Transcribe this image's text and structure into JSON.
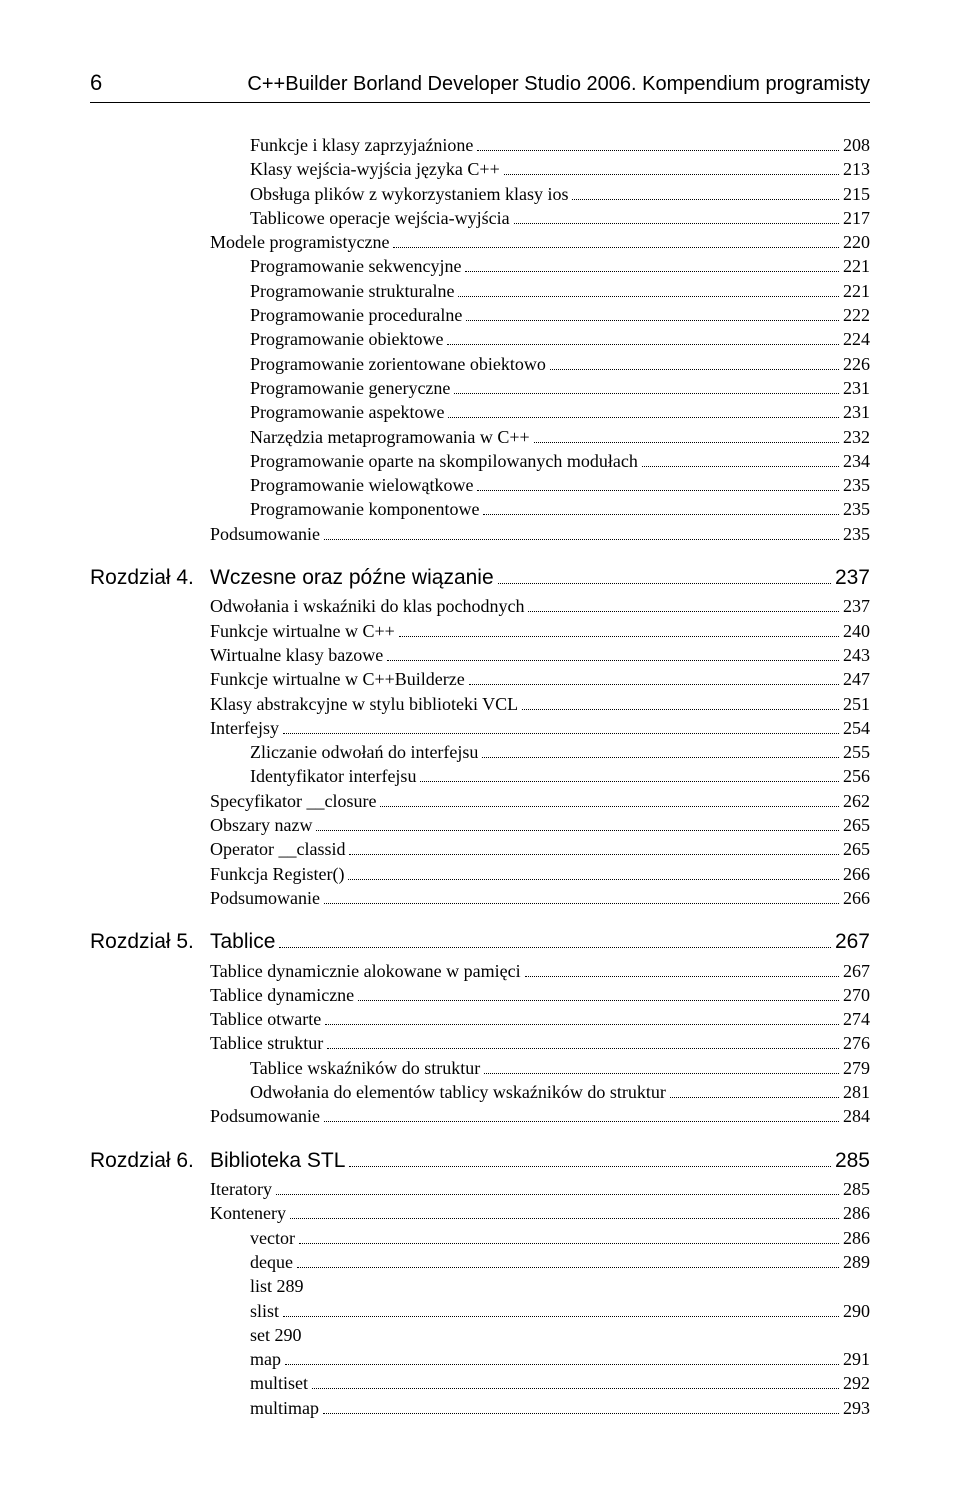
{
  "header": {
    "page_number": "6",
    "title": "C++Builder Borland Developer Studio 2006. Kompendium programisty"
  },
  "blocks": [
    {
      "type": "plain",
      "entries": [
        {
          "indent": 1,
          "label": "Funkcje i klasy zaprzyjaźnione",
          "page": "208"
        },
        {
          "indent": 1,
          "label": "Klasy wejścia-wyjścia języka C++",
          "page": "213"
        },
        {
          "indent": 1,
          "label": "Obsługa plików z wykorzystaniem klasy ios",
          "page": "215"
        },
        {
          "indent": 1,
          "label": "Tablicowe operacje wejścia-wyjścia",
          "page": "217"
        },
        {
          "indent": 0,
          "label": "Modele programistyczne",
          "page": "220"
        },
        {
          "indent": 1,
          "label": "Programowanie sekwencyjne",
          "page": "221"
        },
        {
          "indent": 1,
          "label": "Programowanie strukturalne",
          "page": "221"
        },
        {
          "indent": 1,
          "label": "Programowanie proceduralne",
          "page": "222"
        },
        {
          "indent": 1,
          "label": "Programowanie obiektowe",
          "page": "224"
        },
        {
          "indent": 1,
          "label": "Programowanie zorientowane obiektowo",
          "page": "226"
        },
        {
          "indent": 1,
          "label": "Programowanie generyczne",
          "page": "231"
        },
        {
          "indent": 1,
          "label": "Programowanie aspektowe",
          "page": "231"
        },
        {
          "indent": 1,
          "label": "Narzędzia metaprogramowania w C++",
          "page": "232"
        },
        {
          "indent": 1,
          "label": "Programowanie oparte na skompilowanych modułach",
          "page": "234"
        },
        {
          "indent": 1,
          "label": "Programowanie wielowątkowe",
          "page": "235"
        },
        {
          "indent": 1,
          "label": "Programowanie komponentowe",
          "page": "235"
        },
        {
          "indent": 0,
          "label": "Podsumowanie",
          "page": "235"
        }
      ]
    },
    {
      "type": "chapter",
      "chapter_label": "Rozdział 4.",
      "chapter_title": "Wczesne oraz późne wiązanie",
      "chapter_page": "237",
      "entries": [
        {
          "indent": 0,
          "label": "Odwołania i wskaźniki do klas pochodnych",
          "page": "237"
        },
        {
          "indent": 0,
          "label": "Funkcje wirtualne w C++",
          "page": "240"
        },
        {
          "indent": 0,
          "label": "Wirtualne klasy bazowe",
          "page": "243"
        },
        {
          "indent": 0,
          "label": "Funkcje wirtualne w C++Builderze",
          "page": "247"
        },
        {
          "indent": 0,
          "label": "Klasy abstrakcyjne w stylu biblioteki VCL",
          "page": "251"
        },
        {
          "indent": 0,
          "label": "Interfejsy",
          "page": "254"
        },
        {
          "indent": 1,
          "label": "Zliczanie odwołań do interfejsu",
          "page": "255"
        },
        {
          "indent": 1,
          "label": "Identyfikator interfejsu",
          "page": "256"
        },
        {
          "indent": 0,
          "label": "Specyfikator __closure",
          "page": "262"
        },
        {
          "indent": 0,
          "label": "Obszary nazw",
          "page": "265"
        },
        {
          "indent": 0,
          "label": "Operator __classid",
          "page": "265"
        },
        {
          "indent": 0,
          "label": "Funkcja Register()",
          "page": "266"
        },
        {
          "indent": 0,
          "label": "Podsumowanie",
          "page": "266"
        }
      ]
    },
    {
      "type": "chapter",
      "chapter_label": "Rozdział 5.",
      "chapter_title": "Tablice",
      "chapter_page": "267",
      "entries": [
        {
          "indent": 0,
          "label": "Tablice dynamicznie alokowane w pamięci",
          "page": "267"
        },
        {
          "indent": 0,
          "label": "Tablice dynamiczne",
          "page": "270"
        },
        {
          "indent": 0,
          "label": "Tablice otwarte",
          "page": "274"
        },
        {
          "indent": 0,
          "label": "Tablice struktur",
          "page": "276"
        },
        {
          "indent": 1,
          "label": "Tablice wskaźników do struktur",
          "page": "279"
        },
        {
          "indent": 1,
          "label": "Odwołania do elementów tablicy wskaźników do struktur",
          "page": "281"
        },
        {
          "indent": 0,
          "label": "Podsumowanie",
          "page": "284"
        }
      ]
    },
    {
      "type": "chapter",
      "chapter_label": "Rozdział 6.",
      "chapter_title": "Biblioteka STL",
      "chapter_page": "285",
      "entries": [
        {
          "indent": 0,
          "label": "Iteratory",
          "page": "285"
        },
        {
          "indent": 0,
          "label": "Kontenery",
          "page": "286"
        },
        {
          "indent": 1,
          "label": "vector",
          "page": "286"
        },
        {
          "indent": 1,
          "label": "deque",
          "page": "289"
        },
        {
          "indent": 1,
          "label": "list 289",
          "page": null
        },
        {
          "indent": 1,
          "label": "slist",
          "page": "290"
        },
        {
          "indent": 1,
          "label": "set 290",
          "page": null
        },
        {
          "indent": 1,
          "label": "map",
          "page": "291"
        },
        {
          "indent": 1,
          "label": "multiset",
          "page": "292"
        },
        {
          "indent": 1,
          "label": "multimap",
          "page": "293"
        }
      ]
    }
  ]
}
